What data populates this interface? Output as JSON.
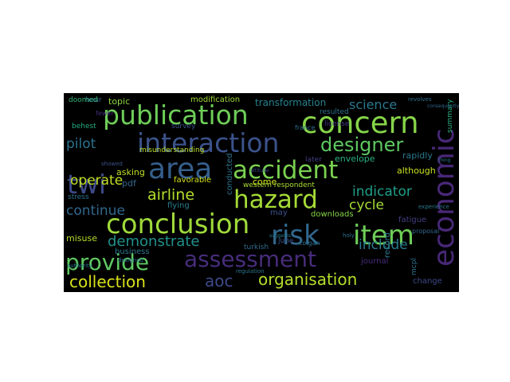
{
  "wordcloud": {
    "background": "#000000",
    "colormap": "viridis",
    "words": [
      {
        "text": "publication",
        "color": "#6ece58"
      },
      {
        "text": "concern",
        "color": "#86d549"
      },
      {
        "text": "interaction",
        "color": "#3b528b"
      },
      {
        "text": "designer",
        "color": "#5ec962"
      },
      {
        "text": "area",
        "color": "#355f8d"
      },
      {
        "text": "accident",
        "color": "#7ad151"
      },
      {
        "text": "twi",
        "color": "#3e4989"
      },
      {
        "text": "hazard",
        "color": "#a5db36"
      },
      {
        "text": "economic",
        "color": "#482878"
      },
      {
        "text": "conclusion",
        "color": "#9fda3a"
      },
      {
        "text": "risk",
        "color": "#31688e"
      },
      {
        "text": "item",
        "color": "#6ece58"
      },
      {
        "text": "assessment",
        "color": "#472d7b"
      },
      {
        "text": "provide",
        "color": "#5ec962"
      },
      {
        "text": "organisation",
        "color": "#b5de2b"
      },
      {
        "text": "collection",
        "color": "#d8e219"
      },
      {
        "text": "aoc",
        "color": "#3e4989"
      },
      {
        "text": "demonstrate",
        "color": "#21918c"
      },
      {
        "text": "airline",
        "color": "#b5de2b"
      },
      {
        "text": "indicator",
        "color": "#1f9e89"
      },
      {
        "text": "operate",
        "color": "#c2df23"
      },
      {
        "text": "pilot",
        "color": "#2c728e"
      },
      {
        "text": "continue",
        "color": "#31688e"
      },
      {
        "text": "cycle",
        "color": "#a5db36"
      },
      {
        "text": "include",
        "color": "#287c8e"
      },
      {
        "text": "science",
        "color": "#2a788e"
      },
      {
        "text": "transformation",
        "color": "#26828e"
      },
      {
        "text": "modification",
        "color": "#9fda3a"
      },
      {
        "text": "topic",
        "color": "#8fd744"
      },
      {
        "text": "hour",
        "color": "#31688e"
      },
      {
        "text": "doomed",
        "color": "#35b779"
      },
      {
        "text": "behest",
        "color": "#25ac82"
      },
      {
        "text": "survey",
        "color": "#3b528b"
      },
      {
        "text": "france",
        "color": "#2e6f8e"
      },
      {
        "text": "license",
        "color": "#443983"
      },
      {
        "text": "resulted",
        "color": "#2c728e"
      },
      {
        "text": "misunderstanding",
        "color": "#bddf26"
      },
      {
        "text": "come",
        "color": "#d2e21b"
      },
      {
        "text": "later",
        "color": "#433e85"
      },
      {
        "text": "envelope",
        "color": "#29af7f"
      },
      {
        "text": "rapidly",
        "color": "#2a788e"
      },
      {
        "text": "although",
        "color": "#c8e020"
      },
      {
        "text": "asking",
        "color": "#c2df23"
      },
      {
        "text": "pdf",
        "color": "#31688e"
      },
      {
        "text": "favorable",
        "color": "#d2e21b"
      },
      {
        "text": "conducted",
        "color": "#2c728e"
      },
      {
        "text": "western respondent",
        "color": "#addc30"
      },
      {
        "text": "flying",
        "color": "#287d8e"
      },
      {
        "text": "may",
        "color": "#3b528b"
      },
      {
        "text": "downloads",
        "color": "#86d549"
      },
      {
        "text": "fatigue",
        "color": "#433e85"
      },
      {
        "text": "record",
        "color": "#2a788e"
      },
      {
        "text": "misuse",
        "color": "#b5de2b"
      },
      {
        "text": "business",
        "color": "#2a788e"
      },
      {
        "text": "turkish",
        "color": "#2e6f8e"
      },
      {
        "text": "june",
        "color": "#3b528b"
      },
      {
        "text": "colgan",
        "color": "#2c728e"
      },
      {
        "text": "journal",
        "color": "#472d7b"
      },
      {
        "text": "mcpl",
        "color": "#2c728e"
      },
      {
        "text": "change",
        "color": "#3e4989"
      },
      {
        "text": "summary",
        "color": "#29af7f"
      },
      {
        "text": "experience",
        "color": "#2a788e"
      },
      {
        "text": "proposal",
        "color": "#31688e"
      },
      {
        "text": "revolves",
        "color": "#2e6f8e"
      },
      {
        "text": "regulation",
        "color": "#2a788e"
      },
      {
        "text": "designed",
        "color": "#2e6f8e"
      },
      {
        "text": "authority",
        "color": "#2a788e"
      },
      {
        "text": "fewer",
        "color": "#472d7b"
      },
      {
        "text": "showed",
        "color": "#3b528b"
      },
      {
        "text": "stress",
        "color": "#2c728e"
      },
      {
        "text": "suggests",
        "color": "#2a788e"
      },
      {
        "text": "holy",
        "color": "#2c728e"
      },
      {
        "text": "attitude",
        "color": "#3e4989"
      },
      {
        "text": "thing",
        "color": "#2a788e"
      },
      {
        "text": "consequently",
        "color": "#31688e"
      }
    ]
  }
}
